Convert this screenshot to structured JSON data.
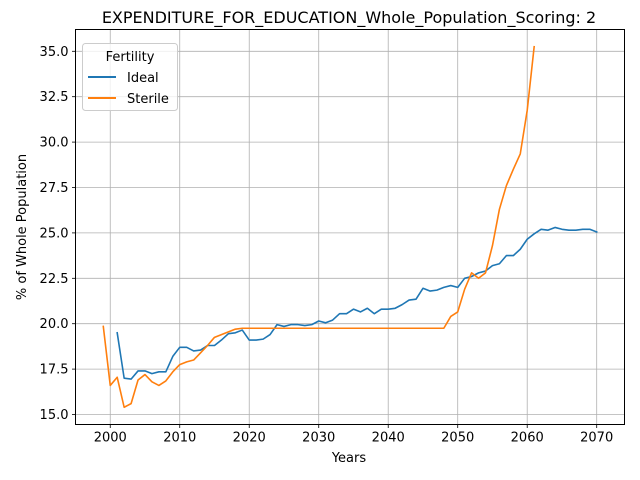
{
  "chart_data": {
    "type": "line",
    "title": "EXPENDITURE_FOR_EDUCATION_Whole_Population_Scoring: 2",
    "xlabel": "Years",
    "ylabel": "% of Whole Population",
    "xlim": [
      1995,
      2074
    ],
    "ylim": [
      14.45,
      36.2
    ],
    "xticks": [
      2000,
      2010,
      2020,
      2030,
      2040,
      2050,
      2060,
      2070
    ],
    "yticks": [
      15.0,
      17.5,
      20.0,
      22.5,
      25.0,
      27.5,
      30.0,
      32.5,
      35.0
    ],
    "xtick_labels": [
      "2000",
      "2010",
      "2020",
      "2030",
      "2040",
      "2050",
      "2060",
      "2070"
    ],
    "ytick_labels": [
      "15.0",
      "17.5",
      "20.0",
      "22.5",
      "25.0",
      "27.5",
      "30.0",
      "32.5",
      "35.0"
    ],
    "grid": true,
    "legend": {
      "title": "Fertility",
      "placement": "top-left"
    },
    "series": [
      {
        "name": "Ideal",
        "color": "#1f77b4",
        "x": [
          2001,
          2002,
          2003,
          2004,
          2005,
          2006,
          2007,
          2008,
          2009,
          2010,
          2011,
          2012,
          2013,
          2014,
          2015,
          2016,
          2017,
          2018,
          2019,
          2020,
          2021,
          2022,
          2023,
          2024,
          2025,
          2026,
          2027,
          2028,
          2029,
          2030,
          2031,
          2032,
          2033,
          2034,
          2035,
          2036,
          2037,
          2038,
          2039,
          2040,
          2041,
          2042,
          2043,
          2044,
          2045,
          2046,
          2047,
          2048,
          2049,
          2050,
          2051,
          2052,
          2053,
          2054,
          2055,
          2056,
          2057,
          2058,
          2059,
          2060,
          2061,
          2062,
          2063,
          2064,
          2065,
          2066,
          2067,
          2068,
          2069,
          2070
        ],
        "values": [
          19.5,
          17.0,
          16.95,
          17.4,
          17.4,
          17.25,
          17.35,
          17.35,
          18.2,
          18.7,
          18.7,
          18.5,
          18.55,
          18.8,
          18.8,
          19.1,
          19.45,
          19.5,
          19.65,
          19.1,
          19.1,
          19.15,
          19.4,
          19.95,
          19.85,
          19.95,
          19.95,
          19.9,
          19.95,
          20.15,
          20.05,
          20.2,
          20.55,
          20.55,
          20.8,
          20.65,
          20.85,
          20.55,
          20.8,
          20.8,
          20.85,
          21.05,
          21.3,
          21.35,
          21.95,
          21.8,
          21.85,
          22.0,
          22.1,
          22.0,
          22.5,
          22.6,
          22.8,
          22.9,
          23.2,
          23.3,
          23.75,
          23.75,
          24.1,
          24.65,
          24.95,
          25.2,
          25.15,
          25.3,
          25.2,
          25.15,
          25.15,
          25.2,
          25.2,
          25.05
        ]
      },
      {
        "name": "Sterile",
        "color": "#ff7f0e",
        "x": [
          1999,
          2000,
          2001,
          2002,
          2003,
          2004,
          2005,
          2006,
          2007,
          2008,
          2009,
          2010,
          2011,
          2012,
          2013,
          2014,
          2015,
          2016,
          2017,
          2018,
          2019,
          2020,
          2021,
          2022,
          2023,
          2024,
          2025,
          2026,
          2027,
          2028,
          2029,
          2030,
          2031,
          2032,
          2033,
          2034,
          2035,
          2036,
          2037,
          2038,
          2039,
          2040,
          2041,
          2042,
          2043,
          2044,
          2045,
          2046,
          2047,
          2048,
          2049,
          2050,
          2051,
          2052,
          2053,
          2054,
          2055,
          2056,
          2057,
          2058,
          2059,
          2060,
          2061
        ],
        "values": [
          19.85,
          16.6,
          17.05,
          15.4,
          15.6,
          16.9,
          17.2,
          16.8,
          16.6,
          16.85,
          17.35,
          17.75,
          17.9,
          18.0,
          18.4,
          18.8,
          19.25,
          19.4,
          19.55,
          19.7,
          19.75,
          19.75,
          19.75,
          19.75,
          19.75,
          19.75,
          19.75,
          19.75,
          19.75,
          19.75,
          19.75,
          19.75,
          19.75,
          19.75,
          19.75,
          19.75,
          19.75,
          19.75,
          19.75,
          19.75,
          19.75,
          19.75,
          19.75,
          19.75,
          19.75,
          19.75,
          19.75,
          19.75,
          19.75,
          19.75,
          20.4,
          20.65,
          21.9,
          22.8,
          22.5,
          22.8,
          24.3,
          26.3,
          27.6,
          28.5,
          29.35,
          31.75,
          35.25
        ]
      }
    ]
  }
}
